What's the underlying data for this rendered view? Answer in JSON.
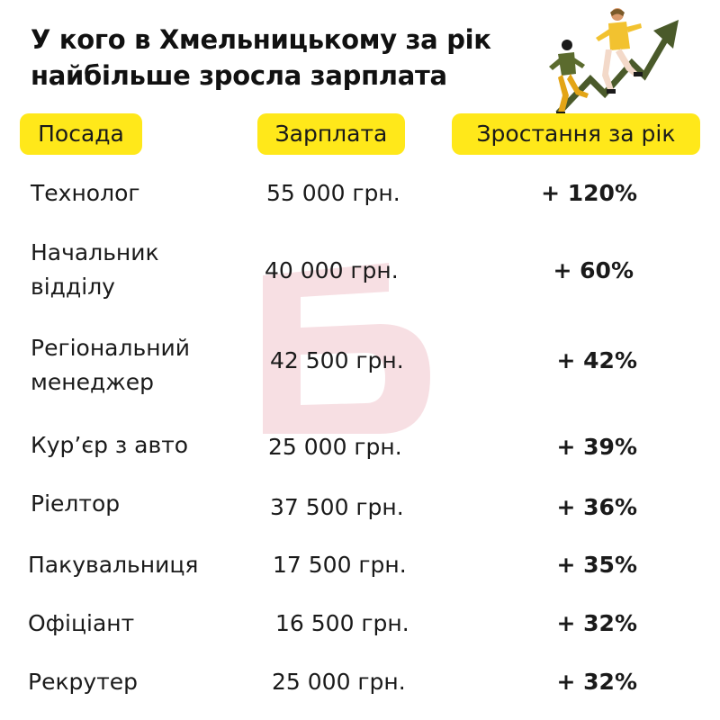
{
  "title": {
    "line1": "У кого в Хмельницькому за рік",
    "line2": "найбільше зросла зарплата"
  },
  "table": {
    "headers": {
      "position": "Посада",
      "salary": "Зарплата",
      "growth": "Зростання за рік"
    },
    "rows": [
      {
        "position": "Технолог",
        "salary": "55 000 грн.",
        "growth": "+ 120%"
      },
      {
        "position": "Начальник відділу",
        "salary": "40 000 грн.",
        "growth": "+ 60%"
      },
      {
        "position": "Регіональний менеджер",
        "salary": "42 500 грн.",
        "growth": "+ 42%"
      },
      {
        "position": "Кур’єр з авто",
        "salary": "25 000 грн.",
        "growth": "+ 39%"
      },
      {
        "position": "Ріелтор",
        "salary": "37 500 грн.",
        "growth": "+ 36%"
      },
      {
        "position": "Пакувальниця",
        "salary": "17 500 грн.",
        "growth": "+ 35%"
      },
      {
        "position": "Офіціант",
        "salary": "16 500 грн.",
        "growth": "+ 32%"
      },
      {
        "position": "Рекрутер",
        "salary": "25 000 грн.",
        "growth": "+ 32%"
      }
    ]
  },
  "colors": {
    "accent": "#FFE81A",
    "arrow": "#4A5A2A",
    "watermark": "#C8102E"
  },
  "icons": [
    "rising-arrow-icon",
    "climbing-people-icon",
    "logo-watermark-icon"
  ]
}
